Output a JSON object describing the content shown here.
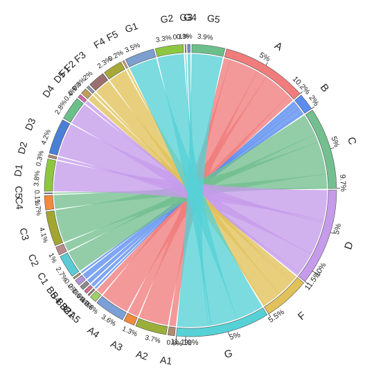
{
  "chart_data": {
    "type": "chord",
    "sources": [
      {
        "id": "A",
        "label": "A",
        "total": 10.2,
        "color": "#F07C7C",
        "ticks": [
          "5%",
          "10.2%"
        ],
        "targets": [
          "A1",
          "A2",
          "A3",
          "A4",
          "A5"
        ]
      },
      {
        "id": "B",
        "label": "B",
        "total": 2,
        "color": "#5B8DEF",
        "ticks": [
          "2%"
        ],
        "targets": [
          "B1",
          "B2",
          "B3",
          "B4",
          "B5"
        ]
      },
      {
        "id": "C",
        "label": "C",
        "total": 9.7,
        "color": "#73BF8F",
        "ticks": [
          "5%",
          "9.7%"
        ],
        "targets": [
          "C1",
          "C2",
          "C3",
          "C4",
          "C5"
        ]
      },
      {
        "id": "D",
        "label": "D",
        "total": 11.5,
        "color": "#C59BEA",
        "ticks": [
          "5%",
          "10%",
          "11.5%"
        ],
        "targets": [
          "D1",
          "D2",
          "D3",
          "D4",
          "D5"
        ]
      },
      {
        "id": "F",
        "label": "F",
        "total": 5.5,
        "color": "#E0C15A",
        "ticks": [
          "5.5%"
        ],
        "targets": [
          "F1",
          "F2",
          "F3",
          "F4",
          "F5"
        ]
      },
      {
        "id": "G",
        "label": "G",
        "total": 11.1,
        "color": "#56D1D6",
        "ticks": [
          "5%",
          "10%",
          "11.1%"
        ],
        "targets": [
          "G1",
          "G2",
          "G3",
          "G4",
          "G5"
        ]
      }
    ],
    "targets": [
      {
        "id": "A1",
        "label": "A1",
        "value": 0.8,
        "value_label": "0.8%",
        "color": "#B0896E"
      },
      {
        "id": "A2",
        "label": "A2",
        "value": 3.7,
        "value_label": "3.7%",
        "color": "#9BAE3A"
      },
      {
        "id": "A3",
        "label": "A3",
        "value": 1.3,
        "value_label": "1.3%",
        "color": "#F08A3C"
      },
      {
        "id": "A4",
        "label": "A4",
        "value": 3.6,
        "value_label": "3.6%",
        "color": "#7BA0D6"
      },
      {
        "id": "A5",
        "label": "A5",
        "value": 0.8,
        "value_label": "0.8%",
        "color": "#9FCF68"
      },
      {
        "id": "B1",
        "label": "B1",
        "value": 0.2,
        "value_label": "0.2%",
        "color": "#9B7A64"
      },
      {
        "id": "B2",
        "label": "B2",
        "value": 0.4,
        "value_label": "0.4%",
        "color": "#D66A8F"
      },
      {
        "id": "B3",
        "label": "B3",
        "value": 0.5,
        "value_label": "0.5%",
        "color": "#8A8A8A"
      },
      {
        "id": "B4",
        "label": "B4",
        "value": 0.7,
        "value_label": "0.7%",
        "color": "#B294D8"
      },
      {
        "id": "B5",
        "label": "B5",
        "value": 0.2,
        "value_label": "0.2%",
        "color": "#A4914E"
      },
      {
        "id": "C1",
        "label": "C1",
        "value": 2.7,
        "value_label": "2.7%",
        "color": "#5ACAD4"
      },
      {
        "id": "C2",
        "label": "C2",
        "value": 1,
        "value_label": "1%",
        "color": "#B88A8A"
      },
      {
        "id": "C3",
        "label": "C3",
        "value": 4.1,
        "value_label": "4.1%",
        "color": "#A2A530"
      },
      {
        "id": "C4",
        "label": "C4",
        "value": 1.7,
        "value_label": "1.7%",
        "color": "#F08A3C"
      },
      {
        "id": "C5",
        "label": "C5",
        "value": 0.1,
        "value_label": "0.1%",
        "color": "#6F8FB8"
      },
      {
        "id": "D1",
        "label": "D1",
        "value": 3.8,
        "value_label": "3.8%",
        "color": "#8DC63F"
      },
      {
        "id": "D2",
        "label": "D2",
        "value": 0.3,
        "value_label": "0.3%",
        "color": "#B38A6A"
      },
      {
        "id": "D3",
        "label": "D3",
        "value": 4.2,
        "value_label": "4.2%",
        "color": "#4A7FD8"
      },
      {
        "id": "D4",
        "label": "D4",
        "value": 2.8,
        "value_label": "2.8%",
        "color": "#6BBF8A"
      },
      {
        "id": "D5",
        "label": "D5",
        "value": 0.4,
        "value_label": "0.4%",
        "color": "#D56BAA"
      },
      {
        "id": "F1",
        "label": "F1",
        "value": 0.7,
        "value_label": "0.7%",
        "color": "#C49B5A"
      },
      {
        "id": "F2",
        "label": "F2",
        "value": 0.3,
        "value_label": "0.3%",
        "color": "#8A9AA8"
      },
      {
        "id": "F3",
        "label": "F3",
        "value": 2,
        "value_label": "2%",
        "color": "#9B6F6F"
      },
      {
        "id": "F4",
        "label": "F4",
        "value": 2.3,
        "value_label": "2.3%",
        "color": "#A6A838"
      },
      {
        "id": "F5",
        "label": "F5",
        "value": 0.2,
        "value_label": "0.2%",
        "color": "#D9A070"
      },
      {
        "id": "G1",
        "label": "G1",
        "value": 3.5,
        "value_label": "3.5%",
        "color": "#7D9FCF"
      },
      {
        "id": "G2",
        "label": "G2",
        "value": 3.3,
        "value_label": "3.3%",
        "color": "#8DC63F"
      },
      {
        "id": "G3",
        "label": "G3",
        "value": 0.1,
        "value_label": "0.1%",
        "color": "#A88A6A"
      },
      {
        "id": "G4",
        "label": "G4",
        "value": 0.3,
        "value_label": "0.3%",
        "color": "#6F8FD0"
      },
      {
        "id": "G5",
        "label": "G5",
        "value": 3.9,
        "value_label": "3.9%",
        "color": "#6BBF8A"
      }
    ]
  }
}
